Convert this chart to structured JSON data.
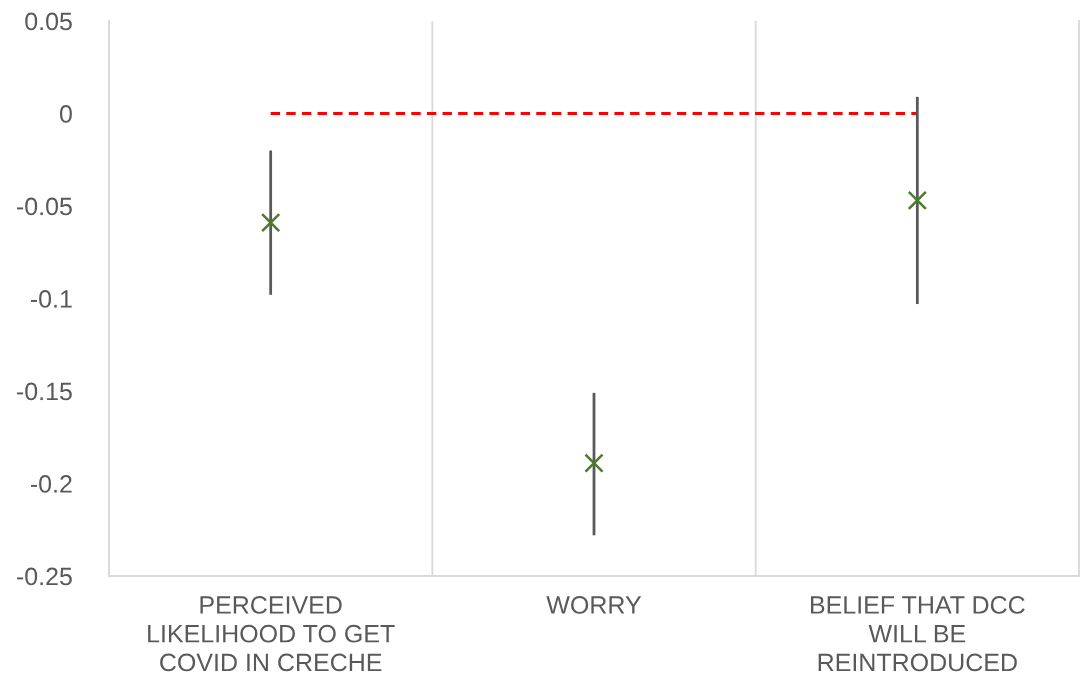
{
  "chart_data": {
    "type": "scatter",
    "categories": [
      "PERCEIVED\nLIKELIHOOD TO GET\nCOVID IN CRECHE",
      "WORRY",
      "BELIEF THAT DCC\nWILL BE\nREINTRODUCED"
    ],
    "series": [
      {
        "type": "line",
        "color": "#ff0000",
        "values": [
          0,
          0,
          0
        ],
        "line_style": "dashed",
        "marker": "none"
      },
      {
        "color": "#4e7a2c",
        "values": [
          -0.059,
          -0.189,
          -0.047
        ],
        "errors": [
          [
            -0.098,
            -0.02
          ],
          [
            -0.228,
            -0.151
          ],
          [
            -0.103,
            0.009
          ]
        ],
        "marker": "cross"
      }
    ],
    "ylim": [
      -0.25,
      0.05
    ],
    "yticks": [
      -0.25,
      -0.2,
      -0.15,
      -0.1,
      -0.05,
      0,
      0.05
    ],
    "grid": "x"
  }
}
